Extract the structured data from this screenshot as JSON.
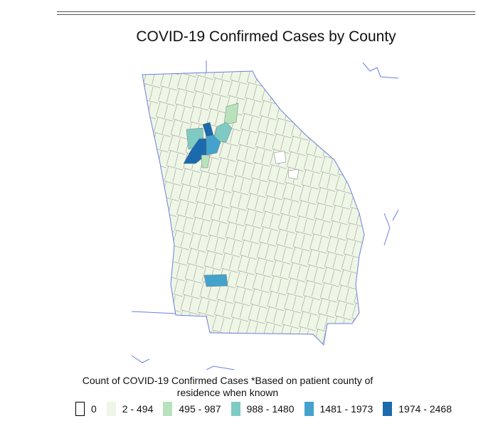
{
  "title": "COVID-19 Confirmed Cases by County",
  "legend": {
    "title": "Count of COVID-19 Confirmed Cases *Based on patient county of residence when known",
    "items": [
      {
        "label": "0",
        "color": "#ffffff"
      },
      {
        "label": "2 - 494",
        "color": "#eef6e6"
      },
      {
        "label": "495 - 987",
        "color": "#b8e2bc"
      },
      {
        "label": "988 - 1480",
        "color": "#7ecbc4"
      },
      {
        "label": "1481 - 1973",
        "color": "#43a3cd"
      },
      {
        "label": "1974 - 2468",
        "color": "#1b6aae"
      }
    ]
  }
}
